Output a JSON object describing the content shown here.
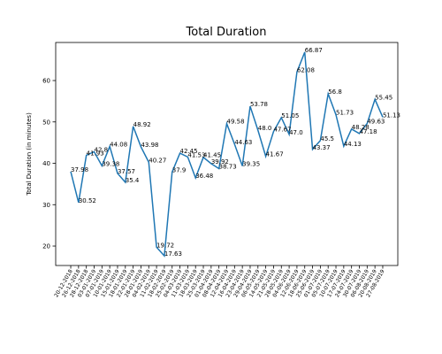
{
  "chart_data": {
    "type": "line",
    "title": "Total Duration",
    "y_label": "Total Duration (in minutes)",
    "categories": [
      "20-12-2018",
      "26-12-2018",
      "28-12-2018",
      "03-01-2019",
      "07-01-2019",
      "10-01-2019",
      "15-01-2019",
      "18-01-2019",
      "22-01-2019",
      "28-01-2019",
      "04-02-2019",
      "11-02-2019",
      "18-02-2019",
      "25-02-2019",
      "04-03-2019",
      "11-03-2019",
      "18-03-2019",
      "25-03-2019",
      "01-04-2019",
      "08-04-2019",
      "12-04-2019",
      "16-04-2019",
      "23-04-2019",
      "29-04-2019",
      "06-05-2019",
      "14-05-2019",
      "21-05-2019",
      "28-05-2019",
      "04-06-2019",
      "12-06-2019",
      "18-06-2019",
      "25-06-2019",
      "01-07-2019",
      "05-07-2019",
      "10-07-2019",
      "17-07-2019",
      "24-07-2019",
      "30-07-2019",
      "06-08-2019",
      "20-08-2019",
      "27-08-2019"
    ],
    "series": [
      {
        "name": "Total Duration",
        "color": "#1f77b4",
        "values": [
          37.98,
          30.52,
          41.93,
          42.8,
          39.38,
          44.08,
          37.57,
          35.4,
          48.92,
          43.98,
          40.27,
          19.72,
          17.63,
          37.9,
          42.45,
          41.53,
          36.48,
          41.45,
          39.92,
          38.73,
          49.58,
          44.63,
          39.35,
          53.78,
          48.0,
          41.67,
          47.67,
          51.05,
          47.0,
          62.08,
          66.87,
          43.37,
          45.5,
          56.8,
          51.73,
          44.13,
          48.28,
          47.18,
          49.63,
          55.45,
          51.13
        ],
        "value_labels": [
          "37.98",
          "30.52",
          "41.93",
          "42.8",
          "39.38",
          "44.08",
          "37.57",
          "35.4",
          "48.92",
          "43.98",
          "40.27",
          "19.72",
          "17.63",
          "37.9",
          "42.45",
          "41.53",
          "36.48",
          "41.45",
          "39.92",
          "38.73",
          "49.58",
          "44.63",
          "39.35",
          "53.78",
          "48.0",
          "41.67",
          "47.67",
          "51.05",
          "47.0",
          "62.08",
          "66.87",
          "43.37",
          "45.5",
          "56.8",
          "51.73",
          "44.13",
          "48.28",
          "47.18",
          "49.63",
          "55.45",
          "51.13"
        ]
      }
    ],
    "ylim": [
      15.3,
      69.2
    ],
    "yticks": [
      20,
      30,
      40,
      50,
      60
    ],
    "grid": false
  }
}
